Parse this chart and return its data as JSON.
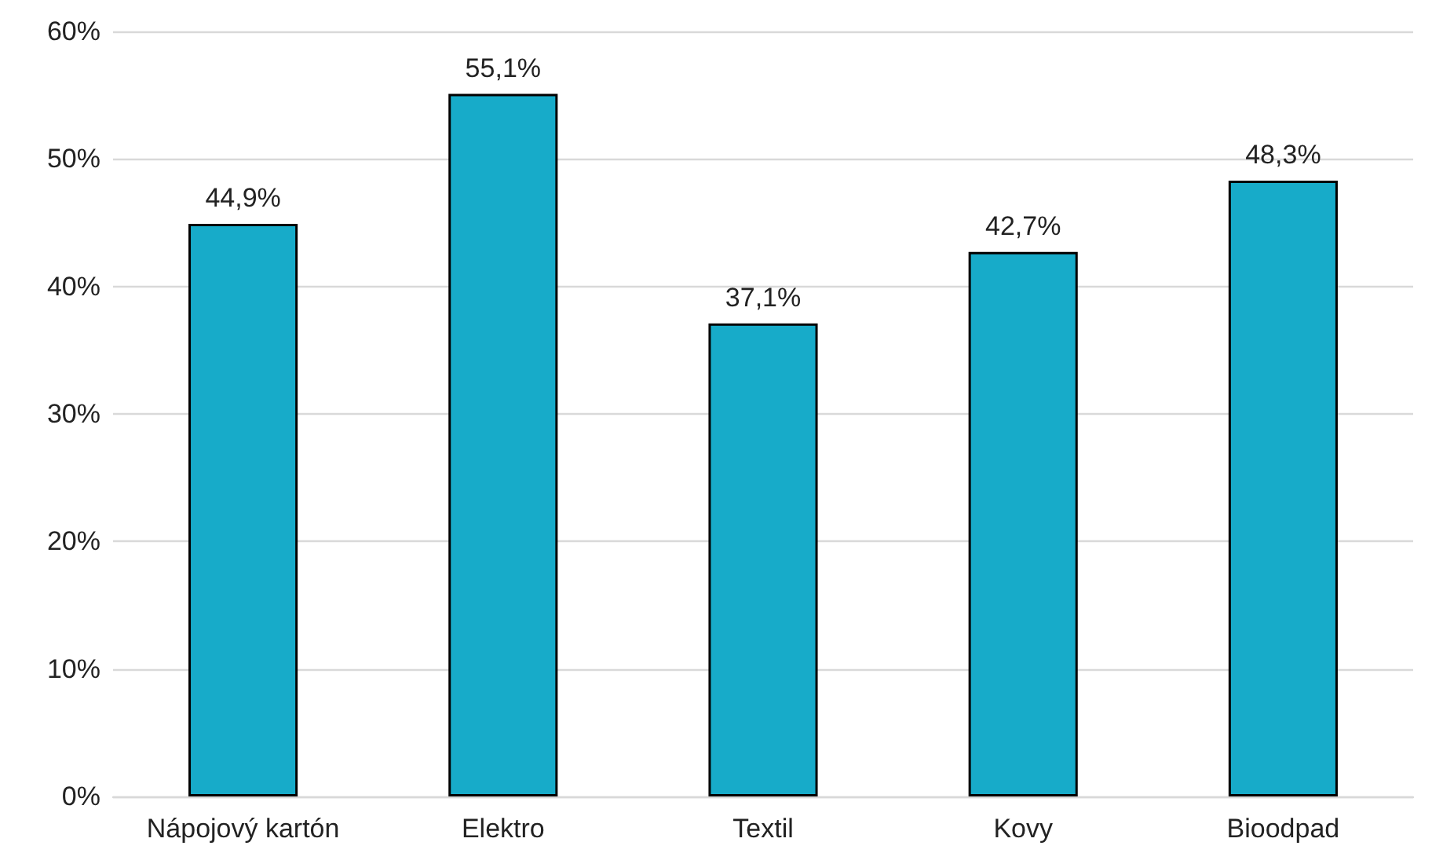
{
  "chart_data": {
    "type": "bar",
    "categories": [
      "Nápojový kartón",
      "Elektro",
      "Textil",
      "Kovy",
      "Bioodpad"
    ],
    "values": [
      44.9,
      55.1,
      37.1,
      42.7,
      48.3
    ],
    "value_labels": [
      "44,9%",
      "55,1%",
      "37,1%",
      "42,7%",
      "48,3%"
    ],
    "color": "#17abc9",
    "ylim": [
      0,
      60
    ],
    "yticks": [
      {
        "value": 0,
        "label": "0%"
      },
      {
        "value": 10,
        "label": "10%"
      },
      {
        "value": 20,
        "label": "20%"
      },
      {
        "value": 30,
        "label": "30%"
      },
      {
        "value": 40,
        "label": "40%"
      },
      {
        "value": 50,
        "label": "50%"
      },
      {
        "value": 60,
        "label": "60%"
      }
    ],
    "grid": "y"
  }
}
